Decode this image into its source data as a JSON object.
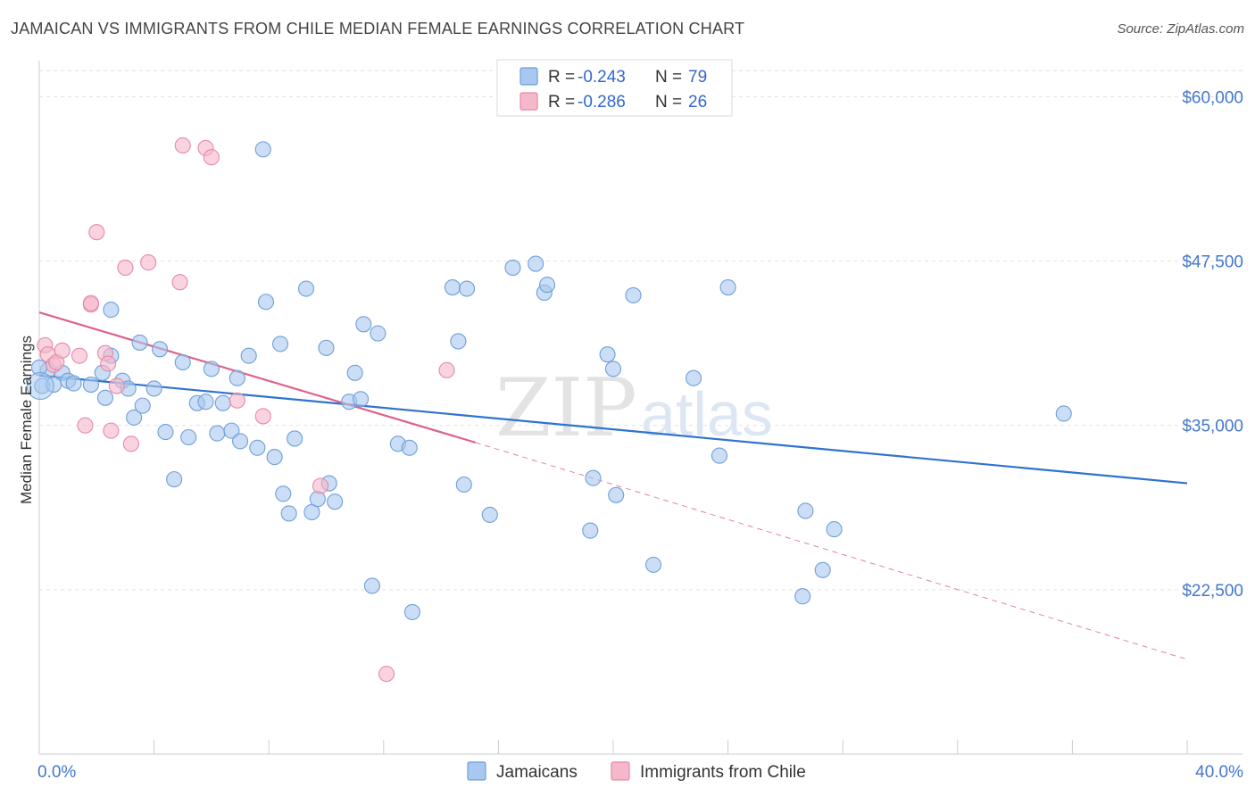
{
  "title": "JAMAICAN VS IMMIGRANTS FROM CHILE MEDIAN FEMALE EARNINGS CORRELATION CHART",
  "source": "Source: ZipAtlas.com",
  "watermark": {
    "zip": "ZIP",
    "atlas": "atlas"
  },
  "legend": {
    "r_label": "R =",
    "n_label": "N =",
    "rows": [
      {
        "r": "-0.243",
        "n": "79",
        "color": "#a8c8ef"
      },
      {
        "r": "-0.286",
        "n": "26",
        "color": "#f5b8cb"
      }
    ]
  },
  "chart_data": {
    "type": "scatter",
    "title": "JAMAICAN VS IMMIGRANTS FROM CHILE MEDIAN FEMALE EARNINGS CORRELATION CHART",
    "xlabel": "",
    "ylabel": "Median Female Earnings",
    "xlim": [
      0,
      40
    ],
    "ylim": [
      10000,
      62000
    ],
    "x_tick_labels": [
      {
        "value": 0,
        "label": "0.0%"
      },
      {
        "value": 40,
        "label": "40.0%"
      }
    ],
    "y_ticks": [
      {
        "value": 60000,
        "label": "$60,000"
      },
      {
        "value": 47500,
        "label": "$47,500"
      },
      {
        "value": 35000,
        "label": "$35,000"
      },
      {
        "value": 22500,
        "label": "$22,500"
      }
    ],
    "series": [
      {
        "name": "Jamaicans",
        "color": "#a8c8ef",
        "stroke": "#6f9fd8",
        "trend": {
          "x0": 0,
          "y0": 38800,
          "x1": 40,
          "y1": 30600,
          "color": "#2f72d0"
        },
        "points": [
          [
            0.1,
            38000
          ],
          [
            0.3,
            39200
          ],
          [
            0.5,
            38100
          ],
          [
            0.8,
            39000
          ],
          [
            1.0,
            38400
          ],
          [
            1.2,
            38200
          ],
          [
            1.8,
            38100
          ],
          [
            2.2,
            39000
          ],
          [
            2.3,
            37100
          ],
          [
            2.5,
            40300
          ],
          [
            2.5,
            43800
          ],
          [
            2.9,
            38400
          ],
          [
            3.1,
            37800
          ],
          [
            3.3,
            35600
          ],
          [
            3.5,
            41300
          ],
          [
            3.6,
            36500
          ],
          [
            4.0,
            37800
          ],
          [
            4.2,
            40800
          ],
          [
            4.4,
            34500
          ],
          [
            4.7,
            30900
          ],
          [
            5.0,
            39800
          ],
          [
            5.2,
            34100
          ],
          [
            5.5,
            36700
          ],
          [
            5.8,
            36800
          ],
          [
            6.0,
            39300
          ],
          [
            6.2,
            34400
          ],
          [
            6.4,
            36700
          ],
          [
            6.7,
            34600
          ],
          [
            6.9,
            38600
          ],
          [
            7.0,
            33800
          ],
          [
            7.3,
            40300
          ],
          [
            7.6,
            33300
          ],
          [
            7.8,
            56000
          ],
          [
            7.9,
            44400
          ],
          [
            8.2,
            32600
          ],
          [
            8.4,
            41200
          ],
          [
            8.5,
            29800
          ],
          [
            8.7,
            28300
          ],
          [
            8.9,
            34000
          ],
          [
            9.3,
            45400
          ],
          [
            9.5,
            28400
          ],
          [
            9.7,
            29400
          ],
          [
            10.0,
            40900
          ],
          [
            10.1,
            30600
          ],
          [
            10.3,
            29200
          ],
          [
            10.8,
            36800
          ],
          [
            11.0,
            39000
          ],
          [
            11.2,
            37000
          ],
          [
            11.3,
            42700
          ],
          [
            11.6,
            22800
          ],
          [
            11.8,
            42000
          ],
          [
            12.5,
            33600
          ],
          [
            12.9,
            33300
          ],
          [
            13.0,
            20800
          ],
          [
            14.4,
            45500
          ],
          [
            14.6,
            41400
          ],
          [
            14.8,
            30500
          ],
          [
            14.9,
            45400
          ],
          [
            15.7,
            28200
          ],
          [
            16.5,
            47000
          ],
          [
            17.3,
            47300
          ],
          [
            17.6,
            45100
          ],
          [
            17.7,
            45700
          ],
          [
            19.2,
            27000
          ],
          [
            19.3,
            31000
          ],
          [
            19.8,
            40400
          ],
          [
            20.0,
            39300
          ],
          [
            20.1,
            29700
          ],
          [
            20.7,
            44900
          ],
          [
            21.4,
            24400
          ],
          [
            22.8,
            38600
          ],
          [
            23.7,
            32700
          ],
          [
            24.0,
            45500
          ],
          [
            26.6,
            22000
          ],
          [
            26.7,
            28500
          ],
          [
            27.3,
            24000
          ],
          [
            27.7,
            27100
          ],
          [
            35.7,
            35900
          ],
          [
            0.0,
            39400
          ]
        ]
      },
      {
        "name": "Immigrants from Chile",
        "color": "#f5b8cb",
        "stroke": "#e68aa7",
        "trend": {
          "x0": 0,
          "y0": 43600,
          "x1": 15.2,
          "y1": 33700,
          "color": "#e0608a"
        },
        "trend_dashed": {
          "x0": 15.2,
          "y0": 33700,
          "x1": 40,
          "y1": 17200,
          "color": "#e87fa1"
        },
        "points": [
          [
            0.2,
            41100
          ],
          [
            0.3,
            40400
          ],
          [
            0.5,
            39600
          ],
          [
            0.6,
            39800
          ],
          [
            0.8,
            40700
          ],
          [
            1.4,
            40300
          ],
          [
            1.6,
            35000
          ],
          [
            1.8,
            44200
          ],
          [
            1.8,
            44300
          ],
          [
            2.0,
            49700
          ],
          [
            2.3,
            40500
          ],
          [
            2.4,
            39700
          ],
          [
            2.5,
            34600
          ],
          [
            2.7,
            38000
          ],
          [
            3.0,
            47000
          ],
          [
            3.2,
            33600
          ],
          [
            3.8,
            47400
          ],
          [
            4.9,
            45900
          ],
          [
            5.0,
            56300
          ],
          [
            5.8,
            56100
          ],
          [
            6.0,
            55400
          ],
          [
            6.9,
            36900
          ],
          [
            7.8,
            35700
          ],
          [
            9.8,
            30400
          ],
          [
            12.1,
            16100
          ],
          [
            14.2,
            39200
          ]
        ]
      }
    ]
  },
  "bottom_legend": [
    {
      "label": "Jamaicans",
      "color": "#a8c8ef",
      "stroke": "#6f9fd8"
    },
    {
      "label": "Immigrants from Chile",
      "color": "#f5b8cb",
      "stroke": "#e68aa7"
    }
  ]
}
